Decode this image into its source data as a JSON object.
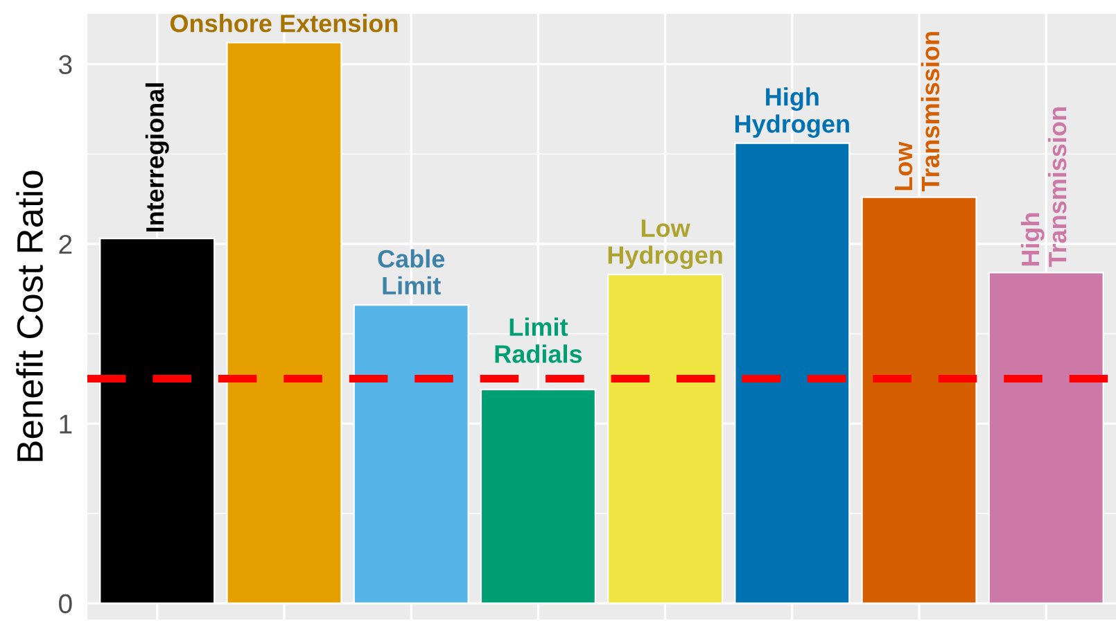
{
  "chart_data": {
    "type": "bar",
    "ylabel": "Benefit Cost Ratio",
    "categories": [
      "Interregional",
      "Onshore Extension",
      "Cable\nLimit",
      "Limit\nRadials",
      "Low\nHydrogen",
      "High\nHydrogen",
      "Low\nTransmission",
      "High\nTransmission"
    ],
    "values": [
      2.03,
      3.12,
      1.66,
      1.19,
      1.83,
      2.56,
      2.26,
      1.84
    ],
    "colors": [
      "#000000",
      "#e69f00",
      "#56b4e9",
      "#009e73",
      "#f0e442",
      "#0072b2",
      "#d55e00",
      "#cc79a7"
    ],
    "ylim": [
      -0.09,
      3.28
    ],
    "yticks": [
      0,
      1,
      2,
      3
    ],
    "grid": true,
    "tick_labels": "y",
    "ref_lines": [
      {
        "axis": "y",
        "value": 1.25,
        "color": "#ff0000",
        "line_style": "dashed"
      }
    ]
  }
}
